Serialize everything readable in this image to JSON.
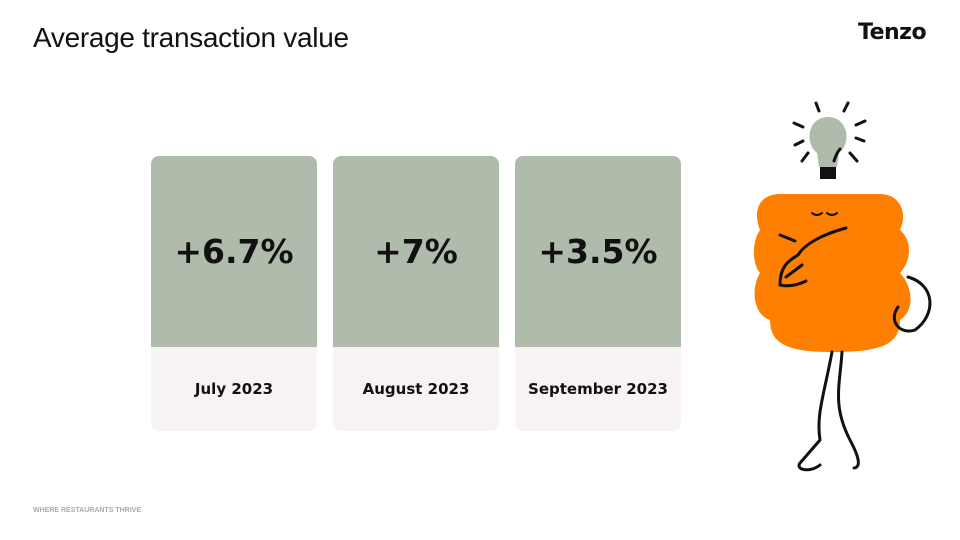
{
  "header": {
    "title": "Average transaction value",
    "logo": "Tenzo"
  },
  "cards": [
    {
      "value": "+6.7%",
      "label": "July 2023"
    },
    {
      "value": "+7%",
      "label": "August 2023"
    },
    {
      "value": "+3.5%",
      "label": "September 2023"
    }
  ],
  "footer": {
    "tagline": "WHERE RESTAURANTS THRIVE"
  }
}
